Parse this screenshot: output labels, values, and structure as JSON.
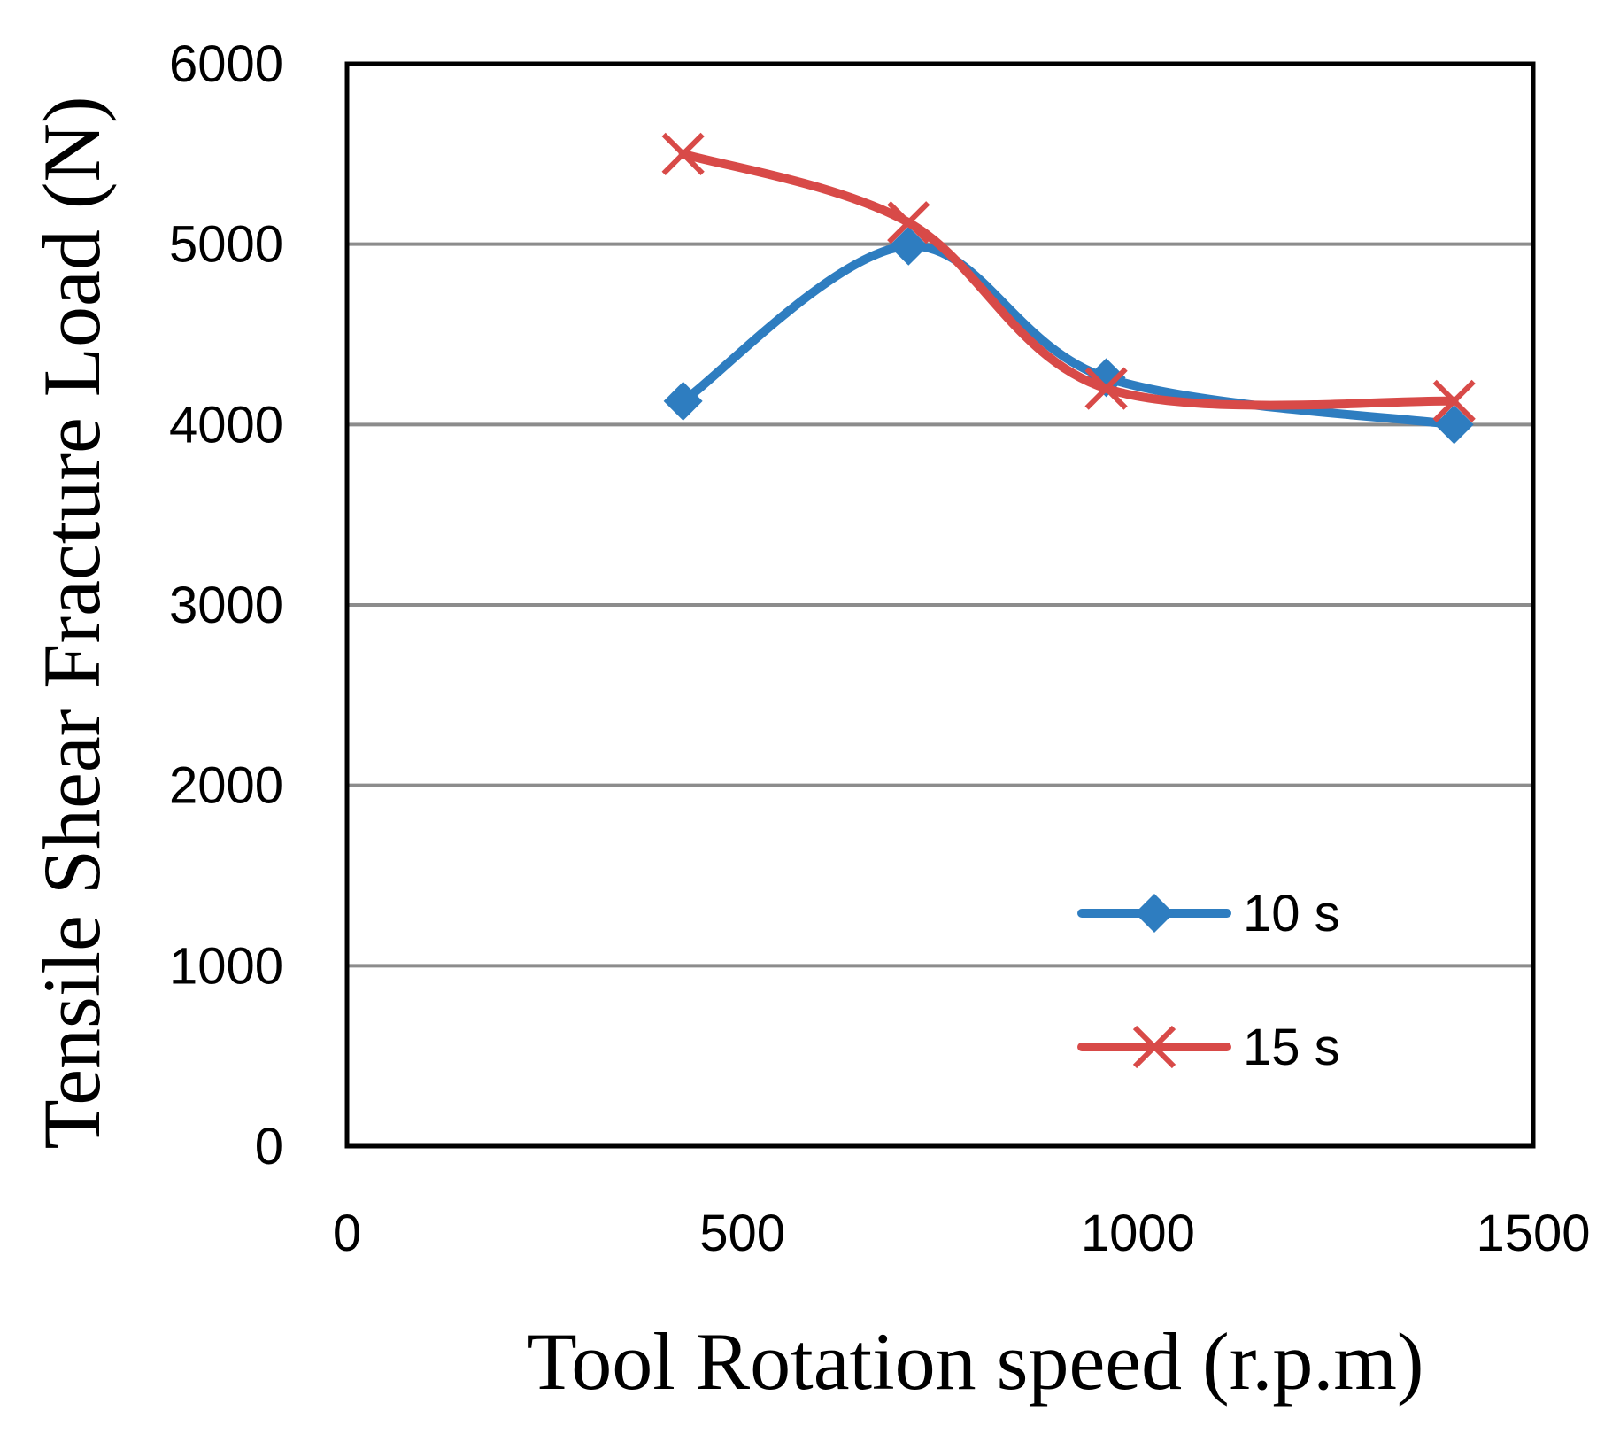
{
  "chart_data": {
    "type": "scatter",
    "title": "",
    "xlabel": "Tool Rotation speed (r.p.m)",
    "ylabel": "Tensile Shear Fracture Load (N)",
    "xlim": [
      0,
      1500
    ],
    "ylim": [
      0,
      6000
    ],
    "xticks": [
      "0",
      "500",
      "1000",
      "1500"
    ],
    "yticks": [
      "0",
      "1000",
      "2000",
      "3000",
      "4000",
      "5000",
      "6000"
    ],
    "grid": "horizontal",
    "legend_position": "bottom-right",
    "series": [
      {
        "name": "10 s",
        "marker": "diamond",
        "color": "#2e7dc0",
        "x": [
          425,
          710,
          960,
          1400
        ],
        "y": [
          4130,
          4990,
          4260,
          4000
        ]
      },
      {
        "name": "15 s",
        "marker": "x",
        "color": "#d84a48",
        "x": [
          425,
          710,
          960,
          1400
        ],
        "y": [
          5500,
          5120,
          4200,
          4130
        ]
      }
    ]
  }
}
